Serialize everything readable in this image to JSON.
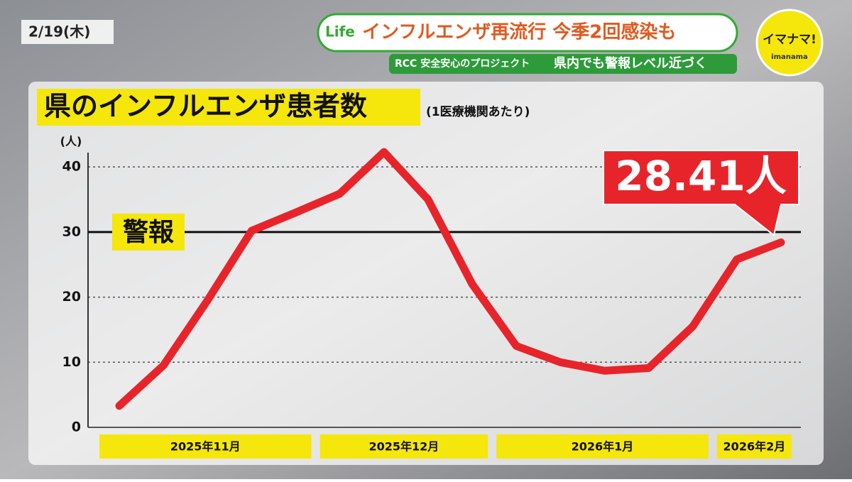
{
  "header": {
    "date": "2/19(木)",
    "brand": "Life",
    "headline": "インフルエンザ再流行 今季2回感染も",
    "project": "RCC 安全安心のプロジェクト",
    "subheadline": "県内でも警報レベル近づく",
    "logo": "イマナマ!",
    "logo_sub": "imanama"
  },
  "chart_data": {
    "type": "line",
    "title": "県のインフルエンザ患者数",
    "subtitle": "(1医療機関あたり)",
    "y_unit": "(人)",
    "categories": [
      "2025年11月",
      "2025年11月",
      "2025年11月",
      "2025年11月",
      "2025年11月",
      "2025年12月",
      "2025年12月",
      "2025年12月",
      "2025年12月",
      "2026年1月",
      "2026年1月",
      "2026年1月",
      "2026年1月",
      "2026年1月",
      "2026年2月",
      "2026年2月"
    ],
    "values": [
      3.3,
      9.5,
      19.5,
      30.2,
      33,
      35.9,
      42.3,
      35,
      22,
      12.5,
      10,
      8.7,
      9.1,
      15.5,
      25.8,
      28.41
    ],
    "value_labels": [
      null,
      null,
      null,
      null,
      null,
      null,
      null,
      null,
      null,
      null,
      null,
      null,
      null,
      null,
      null,
      "28.41人"
    ],
    "color": "#e8242b",
    "ylim": [
      0,
      41
    ],
    "yticks": [
      0,
      10,
      20,
      30,
      40
    ],
    "grid": true,
    "alert_line": {
      "value": 30,
      "label": "警報"
    }
  }
}
